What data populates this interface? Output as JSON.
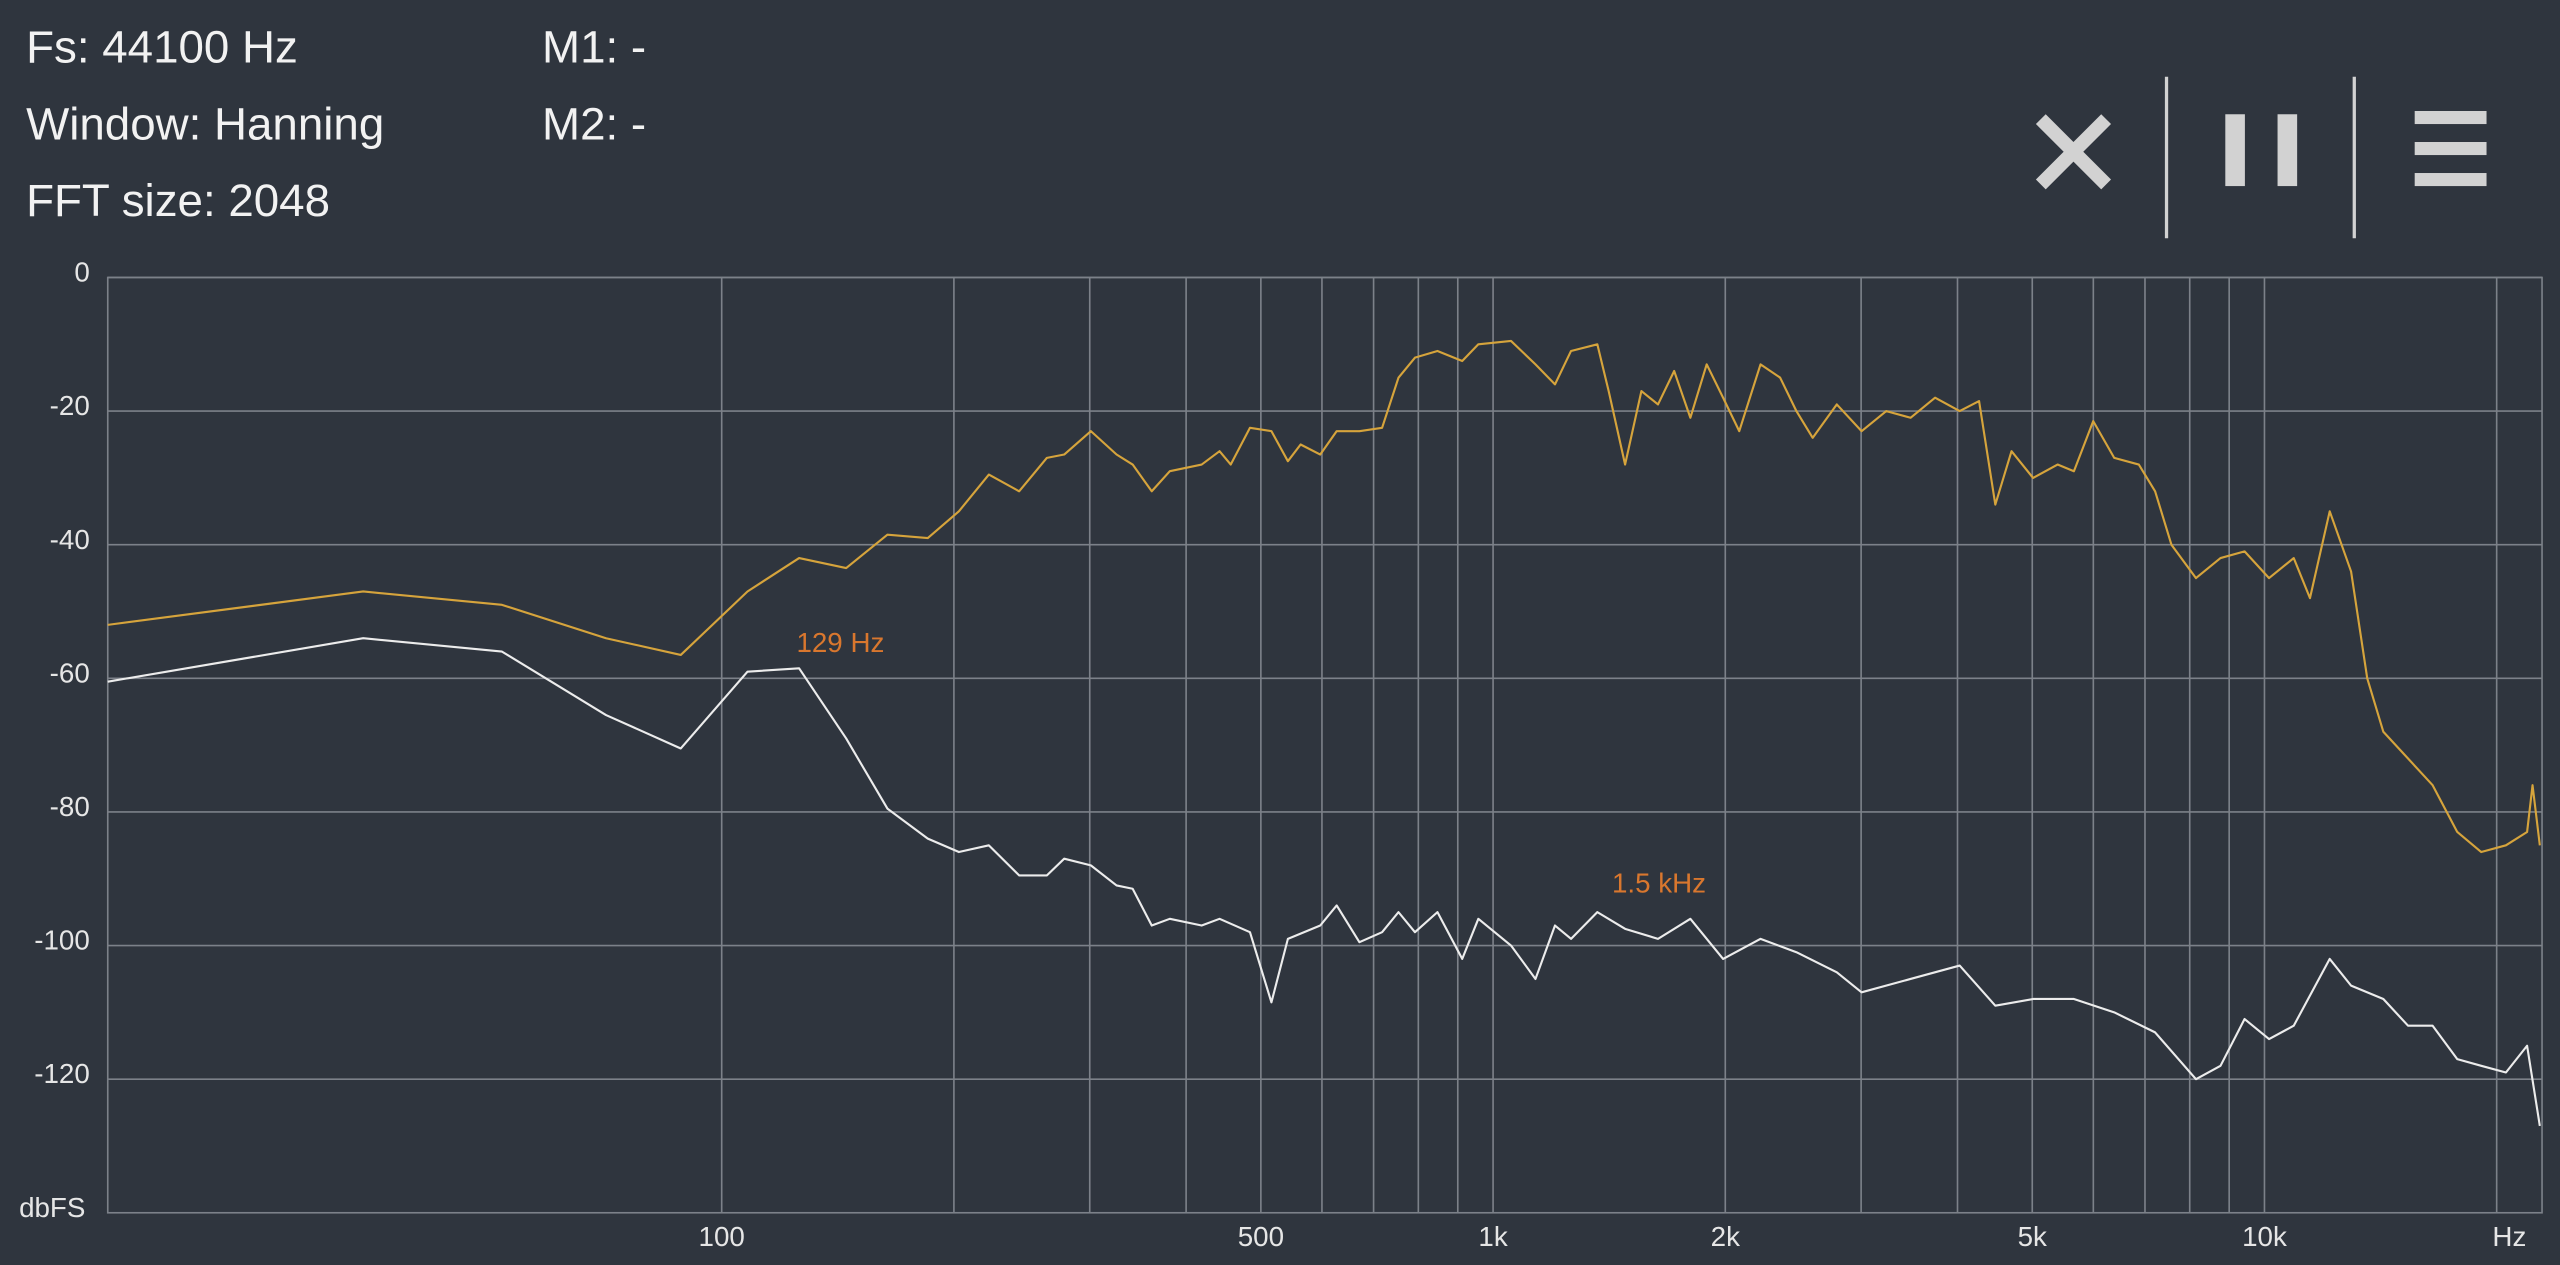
{
  "header": {
    "lines": [
      "Fs: 44100 Hz",
      "Window: Hanning",
      "FFT size: 2048"
    ],
    "markers": [
      "M1: -",
      "M2: -"
    ]
  },
  "chart_data": {
    "type": "line",
    "log_x": true,
    "xlim": [
      16,
      22900
    ],
    "ylim": [
      -140,
      0
    ],
    "xticks": [
      100,
      500,
      {
        "value": 1000,
        "label": "1k"
      },
      {
        "value": 2000,
        "label": "2k"
      },
      {
        "value": 5000,
        "label": "5k"
      },
      {
        "value": 10000,
        "label": "10k"
      }
    ],
    "xgrid": [
      100,
      200,
      300,
      400,
      500,
      600,
      700,
      800,
      900,
      1000,
      2000,
      3000,
      4000,
      5000,
      6000,
      7000,
      8000,
      9000,
      10000,
      20000
    ],
    "yticks": [
      0,
      -20,
      -40,
      -60,
      -80,
      -100,
      -120
    ],
    "x_label": "Hz",
    "y_label": "dbFS",
    "grid": true,
    "annotations": [
      {
        "text": "129 Hz",
        "x": 125,
        "y": -55
      },
      {
        "text": "1.5  kHz",
        "x": 1426,
        "y": -91
      }
    ],
    "series": [
      {
        "color": "#d6a43c",
        "x": [
          16,
          34.3,
          51.9,
          70.8,
          88.5,
          108,
          126,
          145,
          164,
          185,
          203,
          222,
          243,
          264,
          278,
          301,
          325,
          341,
          361,
          381,
          419,
          442,
          457,
          484,
          516,
          542,
          563,
          597,
          627,
          671,
          718,
          754,
          792,
          847,
          912,
          957,
          1055,
          1135,
          1203,
          1262,
          1365,
          1412,
          1483,
          1557,
          1636,
          1717,
          1802,
          1892,
          1987,
          2085,
          2222,
          2356,
          2473,
          2596,
          2790,
          3004,
          3234,
          3477,
          3741,
          4026,
          4266,
          4478,
          4700,
          5012,
          5393,
          5662,
          5998,
          6386,
          6873,
          7215,
          7575,
          8151,
          8770,
          9424,
          10138,
          10913,
          11455,
          12150,
          12950,
          13590,
          14260,
          15350,
          16520,
          17780,
          19100,
          20560,
          21900,
          22260,
          22750
        ],
        "values": [
          -52,
          -47,
          -49,
          -54,
          -56.5,
          -47,
          -42,
          -43.5,
          -38.5,
          -39,
          -35,
          -29.5,
          -32,
          -27,
          -26.5,
          -23,
          -26.5,
          -28,
          -32,
          -29,
          -28,
          -26,
          -28,
          -22.5,
          -23,
          -27.5,
          -25,
          -26.5,
          -23,
          -23,
          -22.5,
          -15,
          -12,
          -11,
          -12.5,
          -10,
          -9.5,
          -13,
          -16,
          -11,
          -10,
          -17,
          -28,
          -17,
          -19,
          -14,
          -21,
          -13,
          -18,
          -23,
          -13,
          -15,
          -20,
          -24,
          -19,
          -23,
          -20,
          -21,
          -18,
          -20,
          -18.5,
          -34,
          -26,
          -30,
          -28,
          -29,
          -21.5,
          -27,
          -28,
          -32,
          -40,
          -45,
          -42,
          -41,
          -45,
          -42,
          -48,
          -35,
          -44,
          -60,
          -68,
          -72,
          -76,
          -83,
          -86,
          -85,
          -83,
          -76,
          -85
        ]
      },
      {
        "color": "#ececec",
        "x": [
          16,
          34.3,
          51.9,
          70.8,
          88.5,
          108,
          126,
          145,
          164,
          185,
          203,
          222,
          243,
          264,
          278,
          301,
          325,
          341,
          361,
          381,
          419,
          442,
          484,
          516,
          542,
          597,
          627,
          671,
          718,
          754,
          792,
          847,
          912,
          957,
          1055,
          1135,
          1203,
          1262,
          1365,
          1483,
          1636,
          1802,
          1987,
          2222,
          2473,
          2790,
          3004,
          3477,
          4026,
          4478,
          5012,
          5662,
          6386,
          7215,
          8151,
          8770,
          9424,
          10138,
          10913,
          12150,
          12950,
          14260,
          15350,
          16520,
          17780,
          19100,
          20560,
          21900,
          22750
        ],
        "values": [
          -60.5,
          -54,
          -56,
          -65.5,
          -70.5,
          -59,
          -58.5,
          -69,
          -79.5,
          -84,
          -86,
          -85,
          -89.5,
          -89.5,
          -87,
          -88,
          -91,
          -91.5,
          -97,
          -96,
          -97,
          -96,
          -98,
          -108.5,
          -99,
          -97,
          -94,
          -99.5,
          -98,
          -95,
          -98,
          -95,
          -102,
          -96,
          -100,
          -105,
          -97,
          -99,
          -95,
          -97.5,
          -99,
          -96,
          -102,
          -99,
          -101,
          -104,
          -107,
          -105,
          -103,
          -109,
          -108,
          -108,
          -110,
          -113,
          -120,
          -118,
          -111,
          -114,
          -112,
          -102,
          -106,
          -108,
          -112,
          -112,
          -117,
          -118,
          -119,
          -115,
          -127
        ]
      }
    ]
  }
}
